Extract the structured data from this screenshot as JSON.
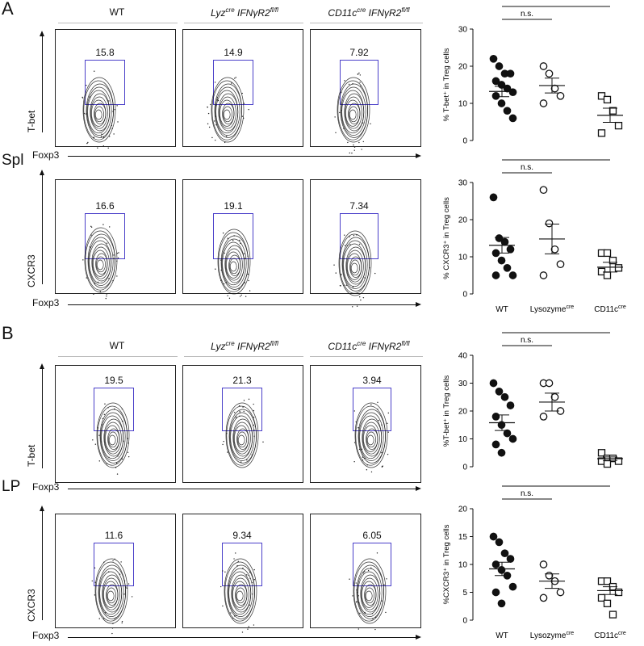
{
  "panels": [
    {
      "letter": "A",
      "tissue": "Spl",
      "headers": {
        "wt": "WT",
        "lyz_a": "Lyz",
        "lyz_sup": "cre",
        "lyz_b": " IFNγR2",
        "lyz_sup2": "fl/fl",
        "cd_a": "CD11c",
        "cd_sup": "cre",
        "cd_b": " IFNγR2",
        "cd_sup2": "fl/fl"
      },
      "rows": [
        {
          "ylabel": "T-bet",
          "xlabel": "Foxp3",
          "values": [
            "15.8",
            "14.9",
            "7.92"
          ]
        },
        {
          "ylabel": "CXCR3",
          "xlabel": "Foxp3",
          "values": [
            "16.6",
            "19.1",
            "7.34"
          ]
        }
      ]
    },
    {
      "letter": "B",
      "tissue": "LP",
      "headers": {
        "wt": "WT",
        "lyz_a": "Lyz",
        "lyz_sup": "cre",
        "lyz_b": " IFNγR2",
        "lyz_sup2": "fl/fl",
        "cd_a": "CD11c",
        "cd_sup": "cre",
        "cd_b": " IFNγR2",
        "cd_sup2": "fl/fl"
      },
      "rows": [
        {
          "ylabel": "T-bet",
          "xlabel": "Foxp3",
          "values": [
            "19.5",
            "21.3",
            "3.94"
          ]
        },
        {
          "ylabel": "CXCR3",
          "xlabel": "Foxp3",
          "values": [
            "11.6",
            "9.34",
            "6.05"
          ]
        }
      ]
    }
  ],
  "chart_data": [
    {
      "type": "scatter",
      "ylabel": "% T-bet⁺ in Treg cells",
      "ylim": [
        0,
        30
      ],
      "yticks": [
        0,
        10,
        20,
        30
      ],
      "categories": [
        "WT",
        "Lysozyme",
        "CD11c"
      ],
      "markers": [
        "filled-circle",
        "open-circle",
        "open-square"
      ],
      "points": [
        [
          22,
          20,
          18,
          18,
          16,
          15,
          14,
          13,
          12,
          10,
          8,
          6
        ],
        [
          20,
          18,
          14,
          12,
          10
        ],
        [
          12,
          11,
          8,
          4,
          2
        ]
      ],
      "means": [
        13.2,
        14.8,
        6.8
      ],
      "sems": [
        1.4,
        2.0,
        1.9
      ],
      "significance": [
        {
          "from": 0,
          "to": 1,
          "label": "n.s."
        },
        {
          "from": 0,
          "to": 2,
          "label": "*"
        }
      ]
    },
    {
      "type": "scatter",
      "ylabel": "% CXCR3⁺ in Treg cells",
      "ylim": [
        0,
        30
      ],
      "yticks": [
        0,
        10,
        20,
        30
      ],
      "categories": [
        "WT",
        "Lysozyme",
        "CD11c"
      ],
      "category_sup": [
        "",
        "cre",
        "cre"
      ],
      "markers": [
        "filled-circle",
        "open-circle",
        "open-square"
      ],
      "points": [
        [
          26,
          15,
          14,
          12,
          11,
          9,
          7,
          5,
          5
        ],
        [
          28,
          19,
          12,
          8,
          5
        ],
        [
          11,
          11,
          9,
          7,
          6,
          5
        ]
      ],
      "means": [
        13.1,
        14.8,
        7.2
      ],
      "sems": [
        2.1,
        4.0,
        1.3
      ],
      "significance": [
        {
          "from": 0,
          "to": 1,
          "label": "n.s."
        },
        {
          "from": 0,
          "to": 2,
          "label": "*"
        }
      ]
    },
    {
      "type": "scatter",
      "ylabel": "%T-bet⁺ in Treg cells",
      "ylim": [
        0,
        40
      ],
      "yticks": [
        0,
        10,
        20,
        30,
        40
      ],
      "categories": [
        "WT",
        "Lysozyme",
        "CD11c"
      ],
      "markers": [
        "filled-circle",
        "open-circle",
        "open-square"
      ],
      "points": [
        [
          30,
          27,
          25,
          22,
          18,
          15,
          12,
          10,
          8,
          5
        ],
        [
          30,
          30,
          25,
          20,
          18
        ],
        [
          5,
          3,
          3,
          2,
          2,
          1
        ]
      ],
      "means": [
        15.8,
        23.2,
        2.9
      ],
      "sems": [
        2.8,
        3.2,
        0.6
      ],
      "significance": [
        {
          "from": 0,
          "to": 1,
          "label": "n.s."
        },
        {
          "from": 0,
          "to": 2,
          "label": "**"
        }
      ]
    },
    {
      "type": "scatter",
      "ylabel": "%CXCR3⁺ in Treg cells",
      "ylim": [
        0,
        20
      ],
      "yticks": [
        0,
        5,
        10,
        15,
        20
      ],
      "categories": [
        "WT",
        "Lysozyme",
        "CD11c"
      ],
      "category_sup": [
        "",
        "cre",
        "cre"
      ],
      "markers": [
        "filled-circle",
        "open-circle",
        "open-square"
      ],
      "points": [
        [
          15,
          14,
          12,
          11,
          10,
          9,
          8,
          6,
          5,
          3
        ],
        [
          10,
          8,
          7,
          5,
          4
        ],
        [
          7,
          7,
          6,
          5,
          4,
          3,
          1
        ]
      ],
      "means": [
        9.2,
        7.0,
        5.3
      ],
      "sems": [
        1.2,
        1.3,
        0.7
      ],
      "significance": [
        {
          "from": 0,
          "to": 1,
          "label": "n.s."
        },
        {
          "from": 0,
          "to": 2,
          "label": "*"
        }
      ]
    }
  ]
}
